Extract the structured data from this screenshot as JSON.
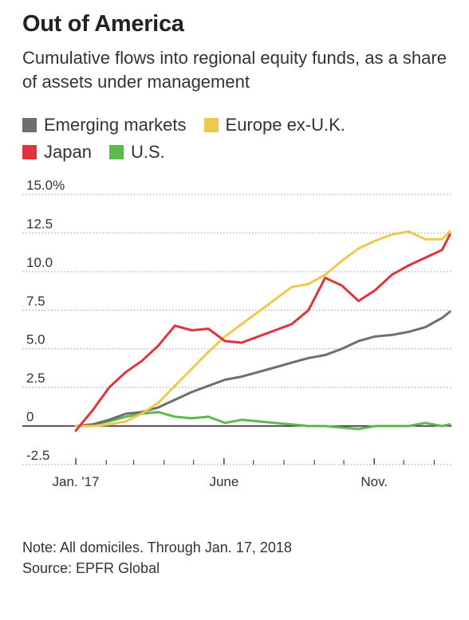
{
  "title": "Out of America",
  "subtitle": "Cumulative flows into regional equity funds, as a share of assets under management",
  "legend": [
    {
      "name": "Emerging markets",
      "color": "#6e6e6e"
    },
    {
      "name": "Europe ex-U.K.",
      "color": "#eec94b"
    },
    {
      "name": "Japan",
      "color": "#e0333d"
    },
    {
      "name": "U.S.",
      "color": "#5cbb4c"
    }
  ],
  "note": "Note: All domiciles. Through Jan. 17, 2018",
  "source": "Source: EPFR Global",
  "chart_data": {
    "type": "line",
    "ylim": [
      -2.5,
      15.0
    ],
    "xlim": [
      "2017-01-01",
      "2018-01-17"
    ],
    "y_ticks": [
      {
        "value": 15.0,
        "label": "15.0%"
      },
      {
        "value": 12.5,
        "label": "12.5"
      },
      {
        "value": 10.0,
        "label": "10.0"
      },
      {
        "value": 7.5,
        "label": "7.5"
      },
      {
        "value": 5.0,
        "label": "5.0"
      },
      {
        "value": 2.5,
        "label": "2.5"
      },
      {
        "value": 0,
        "label": "0"
      },
      {
        "value": -2.5,
        "label": "-2.5"
      }
    ],
    "x_ticks": [
      {
        "value": "2017-01-01",
        "label": "Jan. '17"
      },
      {
        "value": "2017-06-01",
        "label": "June"
      },
      {
        "value": "2017-11-01",
        "label": "Nov."
      }
    ],
    "x_minor_ticks": [
      "2017-02-01",
      "2017-03-01",
      "2017-04-01",
      "2017-05-01",
      "2017-07-01",
      "2017-08-01",
      "2017-09-01",
      "2017-10-01",
      "2017-12-01",
      "2018-01-01"
    ],
    "grid": "horizontal",
    "series": [
      {
        "name": "Emerging markets",
        "color": "#6e6e6e",
        "x": [
          "2017-01-01",
          "2017-01-18",
          "2017-02-04",
          "2017-02-21",
          "2017-03-09",
          "2017-03-26",
          "2017-04-12",
          "2017-04-29",
          "2017-05-16",
          "2017-06-02",
          "2017-06-19",
          "2017-07-06",
          "2017-07-23",
          "2017-08-09",
          "2017-08-26",
          "2017-09-12",
          "2017-09-29",
          "2017-10-16",
          "2017-11-02",
          "2017-11-19",
          "2017-12-06",
          "2017-12-23",
          "2018-01-09",
          "2018-01-17"
        ],
        "y": [
          0.0,
          0.1,
          0.4,
          0.8,
          0.9,
          1.2,
          1.7,
          2.2,
          2.6,
          3.0,
          3.2,
          3.5,
          3.8,
          4.1,
          4.4,
          4.6,
          5.0,
          5.5,
          5.8,
          5.9,
          6.1,
          6.4,
          7.0,
          7.4
        ]
      },
      {
        "name": "Europe ex-U.K.",
        "color": "#eec94b",
        "x": [
          "2017-01-01",
          "2017-01-18",
          "2017-02-04",
          "2017-02-21",
          "2017-03-09",
          "2017-03-26",
          "2017-04-12",
          "2017-04-29",
          "2017-05-16",
          "2017-06-02",
          "2017-06-19",
          "2017-07-06",
          "2017-07-23",
          "2017-08-09",
          "2017-08-26",
          "2017-09-12",
          "2017-09-29",
          "2017-10-16",
          "2017-11-02",
          "2017-11-19",
          "2017-12-06",
          "2017-12-23",
          "2018-01-09",
          "2018-01-17"
        ],
        "y": [
          0.0,
          0.0,
          0.1,
          0.3,
          0.8,
          1.5,
          2.6,
          3.7,
          4.8,
          5.8,
          6.6,
          7.4,
          8.2,
          9.0,
          9.2,
          9.8,
          10.7,
          11.5,
          12.0,
          12.4,
          12.6,
          12.1,
          12.1,
          12.6
        ]
      },
      {
        "name": "Japan",
        "color": "#e0333d",
        "x": [
          "2017-01-01",
          "2017-01-18",
          "2017-02-04",
          "2017-02-21",
          "2017-03-09",
          "2017-03-26",
          "2017-04-12",
          "2017-04-29",
          "2017-05-16",
          "2017-06-02",
          "2017-06-19",
          "2017-07-06",
          "2017-07-23",
          "2017-08-09",
          "2017-08-26",
          "2017-09-12",
          "2017-09-29",
          "2017-10-16",
          "2017-11-02",
          "2017-11-19",
          "2017-12-06",
          "2017-12-23",
          "2018-01-09",
          "2018-01-17"
        ],
        "y": [
          -0.3,
          1.0,
          2.5,
          3.5,
          4.2,
          5.2,
          6.5,
          6.2,
          6.3,
          5.5,
          5.4,
          5.8,
          6.2,
          6.6,
          7.5,
          9.6,
          9.1,
          8.1,
          8.8,
          9.8,
          10.4,
          10.9,
          11.4,
          12.4
        ]
      },
      {
        "name": "U.S.",
        "color": "#5cbb4c",
        "x": [
          "2017-01-01",
          "2017-01-18",
          "2017-02-04",
          "2017-02-21",
          "2017-03-09",
          "2017-03-26",
          "2017-04-12",
          "2017-04-29",
          "2017-05-16",
          "2017-06-02",
          "2017-06-19",
          "2017-07-06",
          "2017-07-23",
          "2017-08-09",
          "2017-08-26",
          "2017-09-12",
          "2017-09-29",
          "2017-10-16",
          "2017-11-02",
          "2017-11-19",
          "2017-12-06",
          "2017-12-23",
          "2018-01-09",
          "2018-01-17"
        ],
        "y": [
          0.0,
          0.1,
          0.3,
          0.6,
          0.8,
          0.9,
          0.6,
          0.5,
          0.6,
          0.2,
          0.4,
          0.3,
          0.2,
          0.1,
          0.0,
          0.0,
          -0.1,
          -0.2,
          0.0,
          0.0,
          0.0,
          0.2,
          0.0,
          0.1
        ]
      }
    ]
  }
}
